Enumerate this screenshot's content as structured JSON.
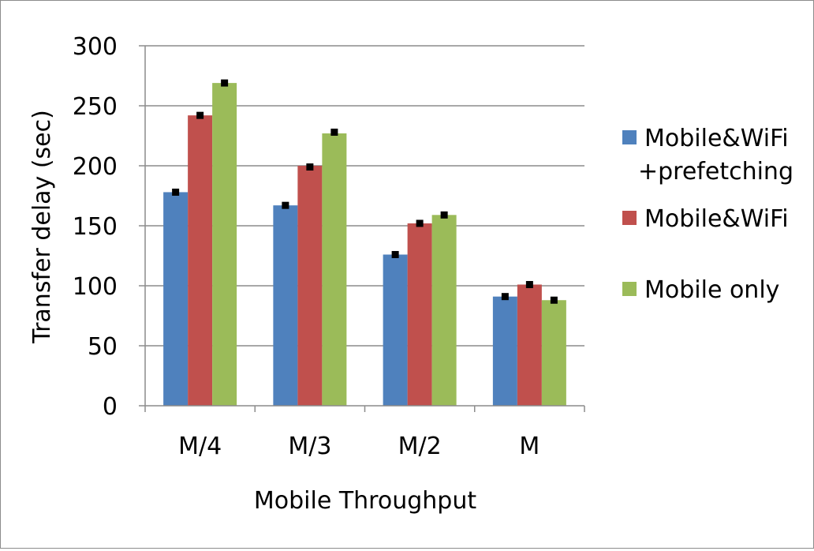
{
  "chart_data": {
    "type": "bar",
    "title": "",
    "xlabel": "Mobile Throughput",
    "ylabel": "Transfer delay (sec)",
    "categories": [
      "M/4",
      "M/3",
      "M/2",
      "M"
    ],
    "ylim": [
      0,
      300
    ],
    "yticks": [
      0,
      50,
      100,
      150,
      200,
      250,
      300
    ],
    "grid": true,
    "legend_position": "right",
    "series": [
      {
        "name": "Mobile&WiFi +prefetching",
        "legend_lines": [
          "Mobile&WiFi",
          "+prefetching"
        ],
        "color": "#4f81bd",
        "values": [
          178,
          167,
          126,
          91
        ],
        "error_markers": [
          178,
          167,
          126,
          91
        ]
      },
      {
        "name": "Mobile&WiFi",
        "legend_lines": [
          "Mobile&WiFi"
        ],
        "color": "#c0504d",
        "values": [
          242,
          200,
          152,
          101
        ],
        "error_markers": [
          242,
          199,
          152,
          101
        ]
      },
      {
        "name": "Mobile only",
        "legend_lines": [
          "Mobile only"
        ],
        "color": "#9bbb59",
        "values": [
          269,
          227,
          159,
          88
        ],
        "error_markers": [
          269,
          228,
          159,
          88
        ]
      }
    ]
  }
}
